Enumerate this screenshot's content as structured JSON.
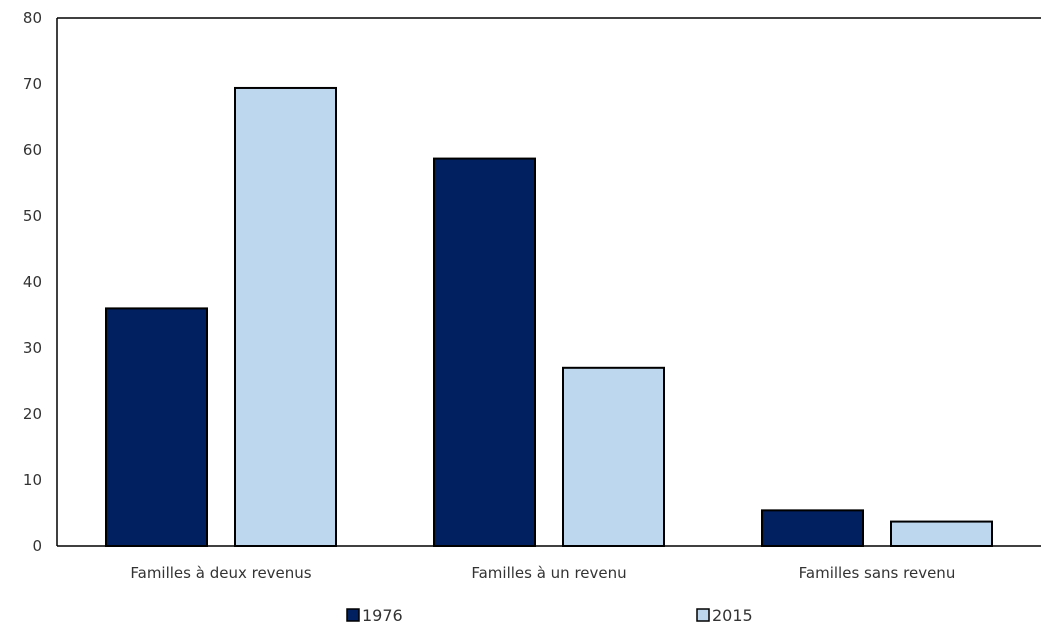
{
  "chart_data": {
    "type": "bar",
    "title": "",
    "xlabel": "",
    "ylabel": "",
    "ylim": [
      0,
      80
    ],
    "yticks": [
      0,
      10,
      20,
      30,
      40,
      50,
      60,
      70,
      80
    ],
    "grid": false,
    "legend_position": "bottom",
    "categories": [
      "Familles à deux revenus",
      "Familles à un revenu",
      "Familles sans revenu"
    ],
    "series": [
      {
        "name": "1976",
        "color": "#002060",
        "values": [
          36,
          58.7,
          5.4
        ]
      },
      {
        "name": "2015",
        "color": "#bdd7ee",
        "values": [
          69.4,
          27,
          3.7
        ]
      }
    ]
  }
}
